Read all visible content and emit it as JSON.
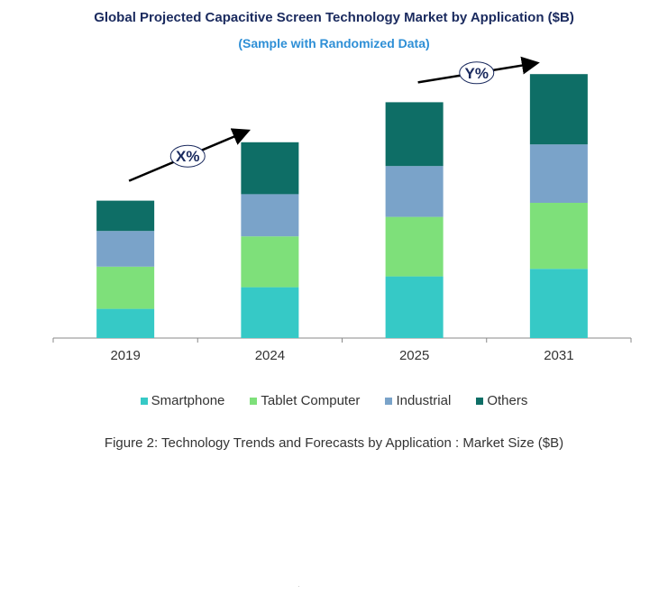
{
  "header": {
    "title": "Global Projected Capacitive Screen Technology Market by Application ($B)",
    "subtitle": "(Sample with Randomized Data)"
  },
  "caption": "Figure 2: Technology  Trends  and Forecasts by Application : Market Size ($B)",
  "colors": {
    "Smartphone": "#36c9c6",
    "Tablet Computer": "#7ee07a",
    "Industrial": "#7aa3c9",
    "Others": "#0e6e66",
    "axis": "#888888",
    "arrow": "#000000"
  },
  "chart_data": {
    "type": "bar",
    "stacked": true,
    "categories": [
      "2019",
      "2024",
      "2025",
      "2031"
    ],
    "series": [
      {
        "name": "Smartphone",
        "values": [
          27,
          47,
          57,
          64
        ]
      },
      {
        "name": "Tablet Computer",
        "values": [
          39,
          47,
          55,
          61
        ]
      },
      {
        "name": "Industrial",
        "values": [
          33,
          39,
          47,
          54
        ]
      },
      {
        "name": "Others",
        "values": [
          28,
          48,
          59,
          65
        ]
      }
    ],
    "ylim": [
      0,
      250
    ],
    "legend_position": "bottom",
    "grid": false,
    "annotations": [
      {
        "label": "X%",
        "from_category": "2019",
        "to_category": "2024"
      },
      {
        "label": "Y%",
        "from_category": "2025",
        "to_category": "2031"
      }
    ]
  }
}
